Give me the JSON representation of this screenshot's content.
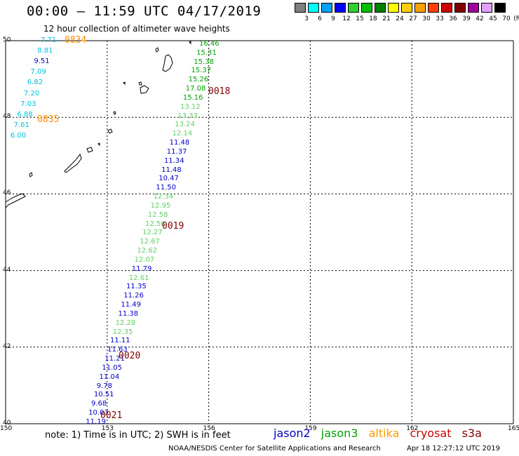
{
  "title": "00:00 – 11:59 UTC 04/17/2019",
  "subtitle": "12 hour collection of altimeter wave heights",
  "colorbar": {
    "labels": [
      "3",
      "6",
      "9",
      "12",
      "15",
      "18",
      "21",
      "24",
      "27",
      "30",
      "33",
      "36",
      "39",
      "42",
      "45",
      "70"
    ],
    "unit": "(ft)",
    "colors": [
      "#808080",
      "#00ffff",
      "#00a0ff",
      "#0000ff",
      "#32cd32",
      "#00c000",
      "#008000",
      "#ffff00",
      "#ffd000",
      "#ffa000",
      "#ff4000",
      "#d00000",
      "#800000",
      "#a000a0",
      "#e0a0ff",
      "#000000"
    ]
  },
  "axes": {
    "lon_labels": [
      "150",
      "153",
      "156",
      "159",
      "162",
      "165"
    ],
    "lat_labels": [
      "50",
      "48",
      "46",
      "44",
      "42",
      "40"
    ]
  },
  "colors": {
    "jason2": "#0000c8",
    "jason3": "#00a000",
    "jason3_light": "#60d060",
    "altika": "#ff9900",
    "cryosat": "#cc0000",
    "s3a": "#800000",
    "cyan": "#00c0e0",
    "time_dark": "#800000",
    "time_orange": "#ff8c00"
  },
  "tracks": {
    "left_track": [
      {
        "v": "7.71",
        "c": "cyan"
      },
      {
        "v": "8.81",
        "c": "cyan"
      },
      {
        "v": "9.51",
        "c": "jason2"
      },
      {
        "v": "7.09",
        "c": "cyan"
      },
      {
        "v": "6.82",
        "c": "cyan"
      },
      {
        "v": "7.20",
        "c": "cyan"
      },
      {
        "v": "7.03",
        "c": "cyan"
      },
      {
        "v": "6.88",
        "c": "cyan"
      },
      {
        "v": "7.61",
        "c": "cyan"
      },
      {
        "v": "6.00",
        "c": "cyan"
      }
    ],
    "left_times": [
      "0834",
      "0835"
    ],
    "right_track": [
      {
        "v": "16.46",
        "c": "jason3"
      },
      {
        "v": "15.31",
        "c": "jason3"
      },
      {
        "v": "15.38",
        "c": "jason3"
      },
      {
        "v": "15.37",
        "c": "jason3"
      },
      {
        "v": "15.26",
        "c": "jason3"
      },
      {
        "v": "17.08",
        "c": "jason3"
      },
      {
        "v": "15.16",
        "c": "jason3"
      },
      {
        "v": "13.12",
        "c": "jason3_light"
      },
      {
        "v": "13.33",
        "c": "jason3_light"
      },
      {
        "v": "13.24",
        "c": "jason3_light"
      },
      {
        "v": "12.14",
        "c": "jason3_light"
      },
      {
        "v": "11.48",
        "c": "jason2"
      },
      {
        "v": "11.37",
        "c": "jason2"
      },
      {
        "v": "11.34",
        "c": "jason2"
      },
      {
        "v": "11.48",
        "c": "jason2"
      },
      {
        "v": "10.47",
        "c": "jason2"
      },
      {
        "v": "11.50",
        "c": "jason2"
      },
      {
        "v": "12.34",
        "c": "jason3_light"
      },
      {
        "v": "12.95",
        "c": "jason3_light"
      },
      {
        "v": "12.58",
        "c": "jason3_light"
      },
      {
        "v": "12.56",
        "c": "jason3_light"
      },
      {
        "v": "12.27",
        "c": "jason3_light"
      },
      {
        "v": "12.67",
        "c": "jason3_light"
      },
      {
        "v": "12.62",
        "c": "jason3_light"
      },
      {
        "v": "12.07",
        "c": "jason3_light"
      },
      {
        "v": "11.79",
        "c": "jason2"
      },
      {
        "v": "12.61",
        "c": "jason3_light"
      },
      {
        "v": "11.35",
        "c": "jason2"
      },
      {
        "v": "11.26",
        "c": "jason2"
      },
      {
        "v": "11.49",
        "c": "jason2"
      },
      {
        "v": "11.38",
        "c": "jason2"
      },
      {
        "v": "12.28",
        "c": "jason3_light"
      },
      {
        "v": "12.35",
        "c": "jason3_light"
      },
      {
        "v": "11.11",
        "c": "jason2"
      },
      {
        "v": "11.63",
        "c": "jason2"
      },
      {
        "v": "11.21",
        "c": "jason2"
      },
      {
        "v": "11.05",
        "c": "jason2"
      },
      {
        "v": "11.04",
        "c": "jason2"
      },
      {
        "v": "9.78",
        "c": "jason2"
      },
      {
        "v": "10.51",
        "c": "jason2"
      },
      {
        "v": "9.68",
        "c": "jason2"
      },
      {
        "v": "10.03",
        "c": "jason2"
      },
      {
        "v": "11.19",
        "c": "jason2"
      }
    ],
    "right_times": [
      "0018",
      "0019",
      "0020",
      "0021"
    ]
  },
  "note": "note:  1) Time is in UTC; 2) SWH is in feet",
  "legend": {
    "jason2": "jason2",
    "jason3": "jason3",
    "altika": "altika",
    "cryosat": "cryosat",
    "s3a": "s3a"
  },
  "credit": "NOAA/NESDIS Center for Satellite Applications and Research",
  "credit_time": "Apr 18 12:27:12 UTC 2019"
}
